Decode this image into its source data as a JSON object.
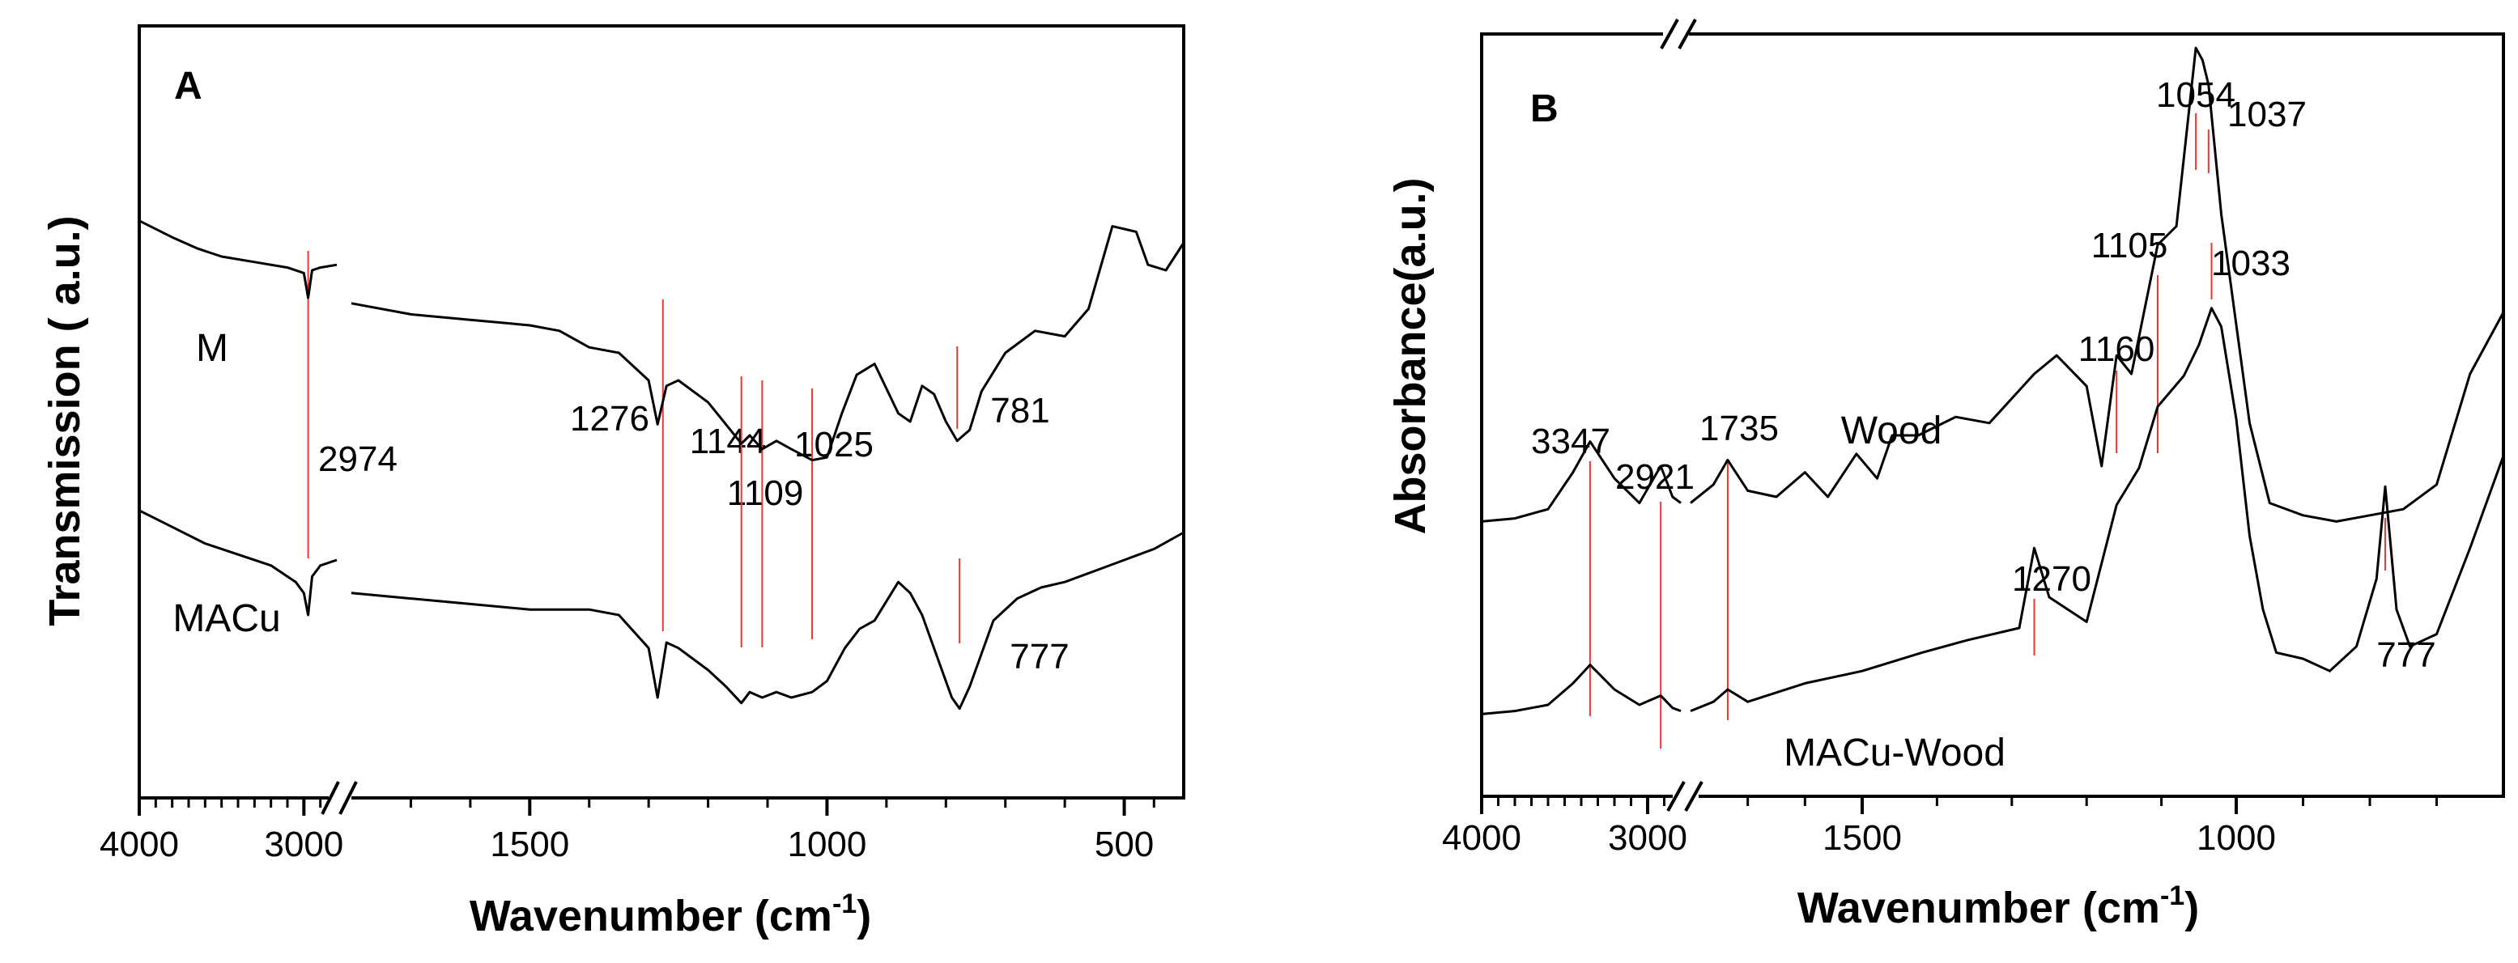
{
  "colors": {
    "axis": "#000000",
    "spectrum": "#000000",
    "marker": "#e8392e",
    "background": "#ffffff"
  },
  "chart_data": [
    {
      "type": "line",
      "panel": "A",
      "ylabel": "Transmission ( a.u.)",
      "xlabel": {
        "main": "Wavenumber (cm",
        "sup": "-1",
        "close": ")"
      },
      "x_ticks": [
        {
          "value": 4000,
          "label": "4000"
        },
        {
          "value": 3000,
          "label": "3000"
        },
        {
          "value": 1500,
          "label": "1500"
        },
        {
          "value": 1000,
          "label": "1000"
        },
        {
          "value": 500,
          "label": "500"
        }
      ],
      "x_axis_break": "between 2800 and 1800 cm-1",
      "series": [
        {
          "name": "M",
          "values": [
            [
              4000,
              0.12
            ],
            [
              3800,
              0.18
            ],
            [
              3650,
              0.22
            ],
            [
              3500,
              0.25
            ],
            [
              3300,
              0.27
            ],
            [
              3100,
              0.29
            ],
            [
              3000,
              0.31
            ],
            [
              2974,
              0.4
            ],
            [
              2950,
              0.3
            ],
            [
              2900,
              0.29
            ],
            [
              2800,
              0.28
            ],
            [
              1800,
              0.42
            ],
            [
              1700,
              0.46
            ],
            [
              1600,
              0.48
            ],
            [
              1500,
              0.5
            ],
            [
              1450,
              0.52
            ],
            [
              1400,
              0.58
            ],
            [
              1350,
              0.6
            ],
            [
              1300,
              0.7
            ],
            [
              1285,
              0.86
            ],
            [
              1270,
              0.72
            ],
            [
              1250,
              0.7
            ],
            [
              1200,
              0.78
            ],
            [
              1170,
              0.86
            ],
            [
              1144,
              0.93
            ],
            [
              1130,
              0.9
            ],
            [
              1109,
              0.95
            ],
            [
              1085,
              0.92
            ],
            [
              1060,
              0.95
            ],
            [
              1025,
              0.99
            ],
            [
              1000,
              0.98
            ],
            [
              975,
              0.82
            ],
            [
              950,
              0.68
            ],
            [
              920,
              0.64
            ],
            [
              880,
              0.82
            ],
            [
              860,
              0.85
            ],
            [
              840,
              0.72
            ],
            [
              820,
              0.75
            ],
            [
              800,
              0.85
            ],
            [
              781,
              0.92
            ],
            [
              760,
              0.88
            ],
            [
              740,
              0.74
            ],
            [
              700,
              0.6
            ],
            [
              650,
              0.52
            ],
            [
              600,
              0.54
            ],
            [
              560,
              0.44
            ],
            [
              520,
              0.14
            ],
            [
              480,
              0.16
            ],
            [
              460,
              0.28
            ],
            [
              430,
              0.3
            ],
            [
              400,
              0.2
            ]
          ]
        },
        {
          "name": "MACu",
          "values": [
            [
              4000,
              0.12
            ],
            [
              3800,
              0.18
            ],
            [
              3600,
              0.24
            ],
            [
              3400,
              0.28
            ],
            [
              3200,
              0.32
            ],
            [
              3050,
              0.38
            ],
            [
              3000,
              0.42
            ],
            [
              2974,
              0.5
            ],
            [
              2950,
              0.36
            ],
            [
              2900,
              0.32
            ],
            [
              2800,
              0.3
            ],
            [
              1800,
              0.42
            ],
            [
              1700,
              0.44
            ],
            [
              1600,
              0.46
            ],
            [
              1500,
              0.48
            ],
            [
              1400,
              0.48
            ],
            [
              1350,
              0.5
            ],
            [
              1300,
              0.62
            ],
            [
              1285,
              0.8
            ],
            [
              1270,
              0.6
            ],
            [
              1250,
              0.62
            ],
            [
              1200,
              0.7
            ],
            [
              1170,
              0.76
            ],
            [
              1144,
              0.82
            ],
            [
              1130,
              0.78
            ],
            [
              1109,
              0.8
            ],
            [
              1085,
              0.78
            ],
            [
              1060,
              0.8
            ],
            [
              1025,
              0.78
            ],
            [
              1000,
              0.74
            ],
            [
              970,
              0.62
            ],
            [
              945,
              0.55
            ],
            [
              920,
              0.52
            ],
            [
              880,
              0.38
            ],
            [
              860,
              0.42
            ],
            [
              840,
              0.5
            ],
            [
              810,
              0.68
            ],
            [
              790,
              0.8
            ],
            [
              777,
              0.84
            ],
            [
              760,
              0.76
            ],
            [
              720,
              0.52
            ],
            [
              680,
              0.44
            ],
            [
              640,
              0.4
            ],
            [
              600,
              0.38
            ],
            [
              550,
              0.34
            ],
            [
              500,
              0.3
            ],
            [
              450,
              0.26
            ],
            [
              400,
              0.2
            ]
          ]
        }
      ],
      "series_labels": [
        "M",
        "MACu"
      ],
      "annotations": [
        "2974",
        "1276",
        "1144",
        "1109",
        "1025",
        "781",
        "777"
      ]
    },
    {
      "type": "line",
      "panel": "B",
      "ylabel": "Absorbance(a.u.)",
      "xlabel": {
        "main": "Wavenumber (cm",
        "sup": "-1",
        "close": ")"
      },
      "x_ticks": [
        {
          "value": 4000,
          "label": "4000"
        },
        {
          "value": 3000,
          "label": "3000"
        },
        {
          "value": 1500,
          "label": "1500"
        },
        {
          "value": 1000,
          "label": "1000"
        }
      ],
      "x_axis_break": "between 2800 and 1800 cm-1",
      "series": [
        {
          "name": "Wood",
          "values": [
            [
              4000,
              0.02
            ],
            [
              3800,
              0.03
            ],
            [
              3600,
              0.06
            ],
            [
              3450,
              0.18
            ],
            [
              3347,
              0.28
            ],
            [
              3200,
              0.16
            ],
            [
              3050,
              0.08
            ],
            [
              2921,
              0.2
            ],
            [
              2850,
              0.1
            ],
            [
              2800,
              0.08
            ],
            [
              1800,
              0.08
            ],
            [
              1760,
              0.14
            ],
            [
              1735,
              0.22
            ],
            [
              1700,
              0.12
            ],
            [
              1650,
              0.1
            ],
            [
              1600,
              0.18
            ],
            [
              1560,
              0.1
            ],
            [
              1510,
              0.24
            ],
            [
              1480,
              0.16
            ],
            [
              1460,
              0.3
            ],
            [
              1425,
              0.3
            ],
            [
              1375,
              0.36
            ],
            [
              1330,
              0.34
            ],
            [
              1270,
              0.5
            ],
            [
              1240,
              0.56
            ],
            [
              1200,
              0.46
            ],
            [
              1180,
              0.2
            ],
            [
              1160,
              0.56
            ],
            [
              1140,
              0.5
            ],
            [
              1105,
              0.92
            ],
            [
              1080,
              0.98
            ],
            [
              1054,
              1.56
            ],
            [
              1045,
              1.52
            ],
            [
              1037,
              1.44
            ],
            [
              1020,
              1.02
            ],
            [
              1000,
              0.66
            ],
            [
              980,
              0.34
            ],
            [
              950,
              0.08
            ],
            [
              900,
              0.04
            ],
            [
              850,
              0.02
            ],
            [
              800,
              0.04
            ],
            [
              750,
              0.06
            ],
            [
              700,
              0.14
            ],
            [
              650,
              0.5
            ],
            [
              600,
              0.7
            ]
          ]
        },
        {
          "name": "MACu-Wood",
          "values": [
            [
              4000,
              0.02
            ],
            [
              3800,
              0.03
            ],
            [
              3600,
              0.05
            ],
            [
              3450,
              0.12
            ],
            [
              3347,
              0.18
            ],
            [
              3200,
              0.1
            ],
            [
              3050,
              0.05
            ],
            [
              2921,
              0.08
            ],
            [
              2850,
              0.04
            ],
            [
              2800,
              0.03
            ],
            [
              1800,
              0.03
            ],
            [
              1760,
              0.06
            ],
            [
              1735,
              0.1
            ],
            [
              1700,
              0.06
            ],
            [
              1600,
              0.12
            ],
            [
              1500,
              0.16
            ],
            [
              1420,
              0.22
            ],
            [
              1360,
              0.26
            ],
            [
              1290,
              0.3
            ],
            [
              1270,
              0.56
            ],
            [
              1250,
              0.4
            ],
            [
              1200,
              0.32
            ],
            [
              1160,
              0.7
            ],
            [
              1130,
              0.82
            ],
            [
              1105,
              1.02
            ],
            [
              1070,
              1.12
            ],
            [
              1050,
              1.22
            ],
            [
              1033,
              1.34
            ],
            [
              1020,
              1.28
            ],
            [
              1000,
              0.98
            ],
            [
              980,
              0.6
            ],
            [
              960,
              0.36
            ],
            [
              940,
              0.22
            ],
            [
              900,
              0.2
            ],
            [
              860,
              0.16
            ],
            [
              820,
              0.24
            ],
            [
              790,
              0.46
            ],
            [
              777,
              0.76
            ],
            [
              760,
              0.36
            ],
            [
              740,
              0.24
            ],
            [
              700,
              0.28
            ],
            [
              650,
              0.56
            ],
            [
              600,
              0.86
            ]
          ]
        }
      ],
      "series_labels": [
        "Wood",
        "MACu-Wood"
      ],
      "annotations": [
        "3347",
        "2921",
        "1735",
        "1270",
        "1160",
        "1105",
        "1054",
        "1037",
        "1033",
        "777"
      ]
    }
  ]
}
